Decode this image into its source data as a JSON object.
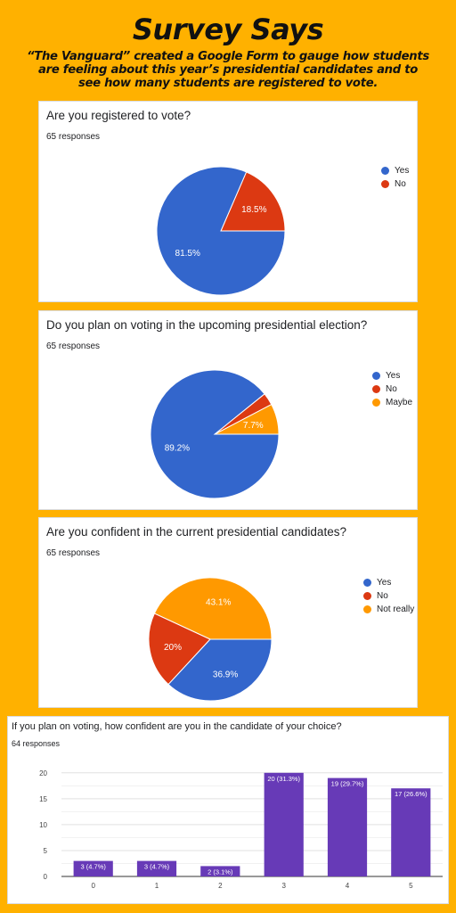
{
  "header": {
    "title": "Survey Says",
    "subtitle": "“The Vanguard” created a Google Form to gauge how students are feeling about this year’s presidential candidates and to see how many students are registered to vote."
  },
  "colors": {
    "blue": "#3366CC",
    "red": "#DC3912",
    "orange": "#FF9900",
    "purple": "#673AB7",
    "background": "#FFB100"
  },
  "chart_data": [
    {
      "type": "pie",
      "title": "Are you registered to vote?",
      "subtitle": "65 responses",
      "legend_position": "right",
      "slices": [
        {
          "label": "Yes",
          "percent": 81.5,
          "color": "#3366CC"
        },
        {
          "label": "No",
          "percent": 18.5,
          "color": "#DC3912"
        }
      ]
    },
    {
      "type": "pie",
      "title": "Do you plan on voting in the upcoming presidential election?",
      "subtitle": "65 responses",
      "legend_position": "right",
      "slices": [
        {
          "label": "Yes",
          "percent": 89.2,
          "color": "#3366CC"
        },
        {
          "label": "No",
          "percent": 3.1,
          "color": "#DC3912"
        },
        {
          "label": "Maybe",
          "percent": 7.7,
          "color": "#FF9900"
        }
      ]
    },
    {
      "type": "pie",
      "title": "Are you confident in the current presidential candidates?",
      "subtitle": "65 responses",
      "legend_position": "right",
      "slices": [
        {
          "label": "Yes",
          "percent": 36.9,
          "color": "#3366CC"
        },
        {
          "label": "No",
          "percent": 20,
          "color": "#DC3912"
        },
        {
          "label": "Not really",
          "percent": 43.1,
          "color": "#FF9900"
        }
      ]
    },
    {
      "type": "bar",
      "title": "If you plan on voting, how confident are you in the candidate of your choice?",
      "subtitle": "64 responses",
      "categories": [
        "0",
        "1",
        "2",
        "3",
        "4",
        "5"
      ],
      "values": [
        3,
        3,
        2,
        20,
        19,
        17
      ],
      "data_labels": [
        "3 (4.7%)",
        "3 (4.7%)",
        "2 (3.1%)",
        "20 (31.3%)",
        "19 (29.7%)",
        "17 (26.6%)"
      ],
      "yticks": [
        0,
        5,
        10,
        15,
        20
      ],
      "ylim": [
        0,
        21
      ],
      "color": "#673AB7",
      "grid": true
    }
  ]
}
